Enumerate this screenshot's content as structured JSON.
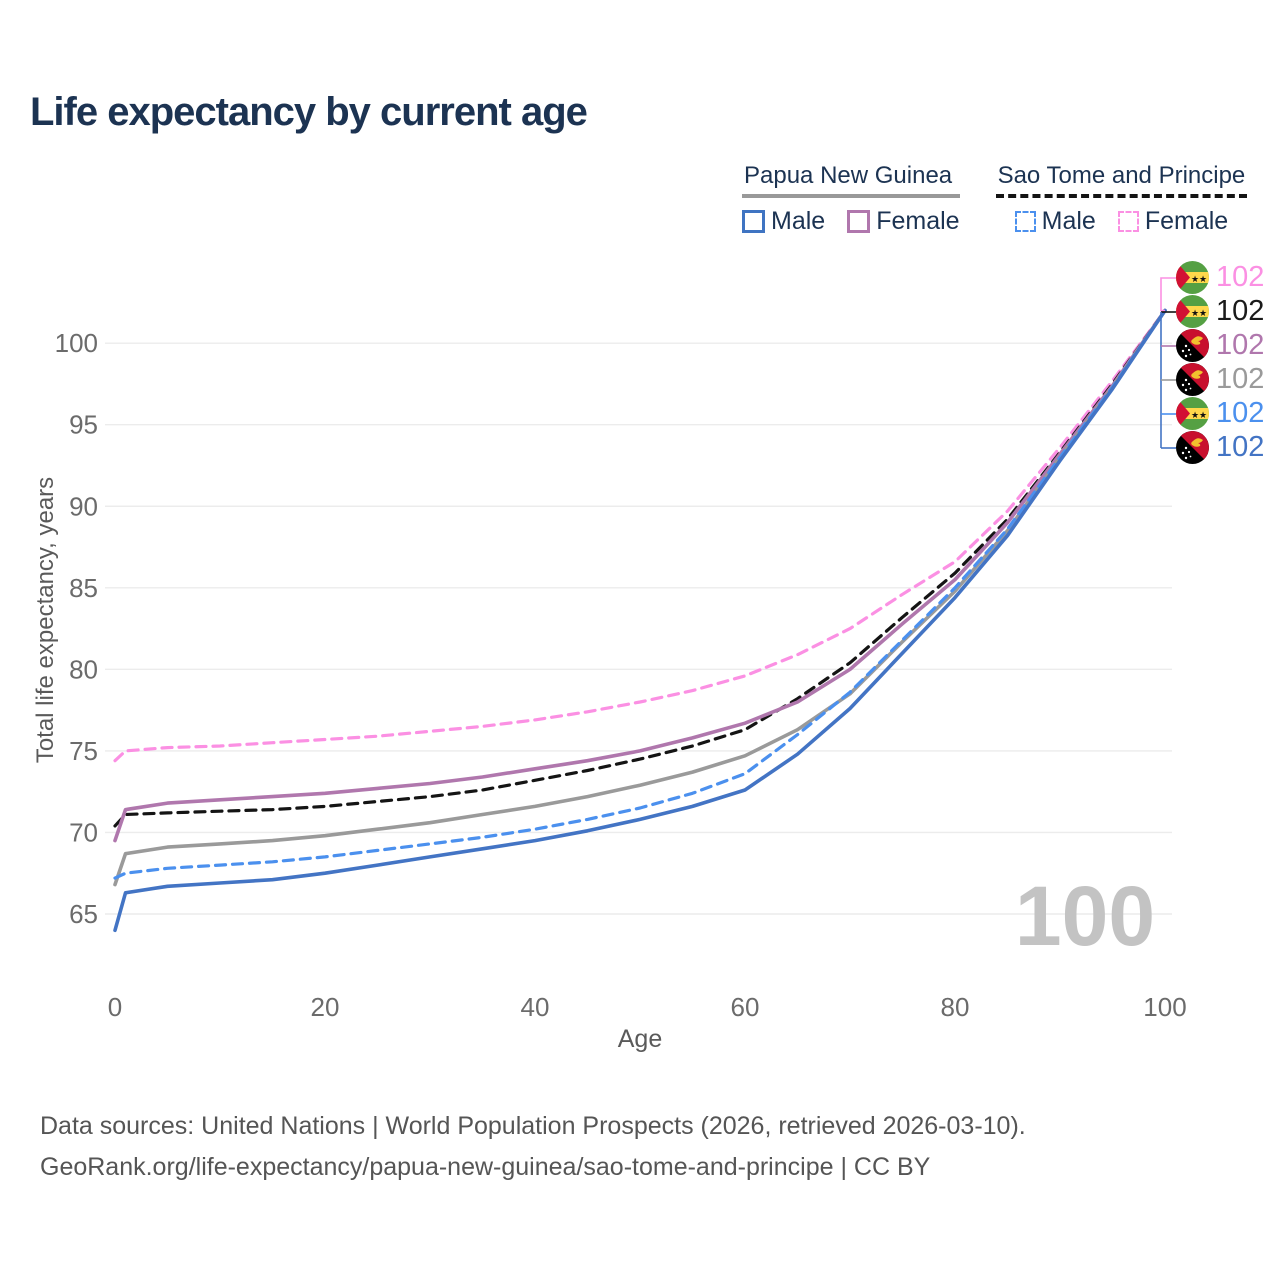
{
  "title": "Life expectancy by current age",
  "legend": {
    "groups": [
      {
        "country": "Papua New Guinea",
        "line_style": "solid",
        "line_color": "#999999",
        "items": [
          {
            "label": "Male",
            "color": "#3f74c2",
            "dashed": false
          },
          {
            "label": "Female",
            "color": "#b077ad",
            "dashed": false
          }
        ]
      },
      {
        "country": "Sao Tome and Principe",
        "line_style": "dashed",
        "line_color": "#141414",
        "items": [
          {
            "label": "Male",
            "color": "#4b90ee",
            "dashed": true
          },
          {
            "label": "Female",
            "color": "#fb90e3",
            "dashed": true
          }
        ]
      }
    ]
  },
  "chart_data": {
    "type": "line",
    "title": "Life expectancy by current age",
    "xlabel": "Age",
    "ylabel": "Total life expectancy, years",
    "xlim": [
      0,
      100
    ],
    "ylim": [
      63,
      104
    ],
    "xticks": [
      0,
      20,
      40,
      60,
      80,
      100
    ],
    "yticks": [
      65,
      70,
      75,
      80,
      85,
      90,
      95,
      100
    ],
    "grid": true,
    "legend_position": "top-right",
    "age_watermark": "100",
    "x": [
      0,
      1,
      5,
      10,
      15,
      20,
      25,
      30,
      35,
      40,
      45,
      50,
      55,
      60,
      65,
      70,
      75,
      80,
      85,
      90,
      95,
      100
    ],
    "series": [
      {
        "name": "Sao Tome and Principe — Female",
        "flag": "stp",
        "color": "#fb90e3",
        "dash": true,
        "end_label": "102",
        "values": [
          74.4,
          75.0,
          75.2,
          75.3,
          75.5,
          75.7,
          75.9,
          76.2,
          76.5,
          76.9,
          77.4,
          78.0,
          78.7,
          79.6,
          80.9,
          82.5,
          84.6,
          86.6,
          89.7,
          93.6,
          97.7,
          102
        ]
      },
      {
        "name": "Sao Tome and Principe — Both sexes",
        "flag": "stp",
        "color": "#141414",
        "dash": true,
        "end_label": "102",
        "values": [
          70.4,
          71.1,
          71.2,
          71.3,
          71.4,
          71.6,
          71.9,
          72.2,
          72.6,
          73.2,
          73.8,
          74.5,
          75.3,
          76.3,
          78.2,
          80.4,
          83.2,
          85.9,
          89.2,
          93.3,
          97.5,
          102
        ]
      },
      {
        "name": "Papua New Guinea — Female",
        "flag": "png",
        "color": "#b077ad",
        "dash": false,
        "end_label": "102",
        "values": [
          69.5,
          71.4,
          71.8,
          72.0,
          72.2,
          72.4,
          72.7,
          73.0,
          73.4,
          73.9,
          74.4,
          75.0,
          75.8,
          76.7,
          78.0,
          80.0,
          82.8,
          85.5,
          89.0,
          93.2,
          97.4,
          102
        ]
      },
      {
        "name": "Papua New Guinea — Both sexes",
        "flag": "png",
        "color": "#9a9a9a",
        "dash": false,
        "end_label": "102",
        "values": [
          66.8,
          68.7,
          69.1,
          69.3,
          69.5,
          69.8,
          70.2,
          70.6,
          71.1,
          71.6,
          72.2,
          72.9,
          73.7,
          74.7,
          76.3,
          78.5,
          81.7,
          84.8,
          88.5,
          93.0,
          97.3,
          102
        ]
      },
      {
        "name": "Sao Tome and Principe — Male",
        "flag": "stp",
        "color": "#4b90ee",
        "dash": true,
        "end_label": "102",
        "values": [
          67.2,
          67.5,
          67.8,
          68.0,
          68.2,
          68.5,
          68.9,
          69.3,
          69.7,
          70.2,
          70.8,
          71.5,
          72.4,
          73.6,
          76.0,
          78.6,
          81.8,
          85.0,
          88.6,
          93.0,
          97.3,
          102
        ]
      },
      {
        "name": "Papua New Guinea — Male",
        "flag": "png",
        "color": "#4374c4",
        "dash": false,
        "end_label": "102",
        "values": [
          64.0,
          66.3,
          66.7,
          66.9,
          67.1,
          67.5,
          68.0,
          68.5,
          69.0,
          69.5,
          70.1,
          70.8,
          71.6,
          72.6,
          74.8,
          77.6,
          81.0,
          84.4,
          88.2,
          92.8,
          97.2,
          102
        ]
      }
    ]
  },
  "footer": {
    "line1": "Data sources: United Nations | World Population Prospects (2026, retrieved 2026-03-10).",
    "line2": "GeoRank.org/life-expectancy/papua-new-guinea/sao-tome-and-principe | CC BY"
  }
}
